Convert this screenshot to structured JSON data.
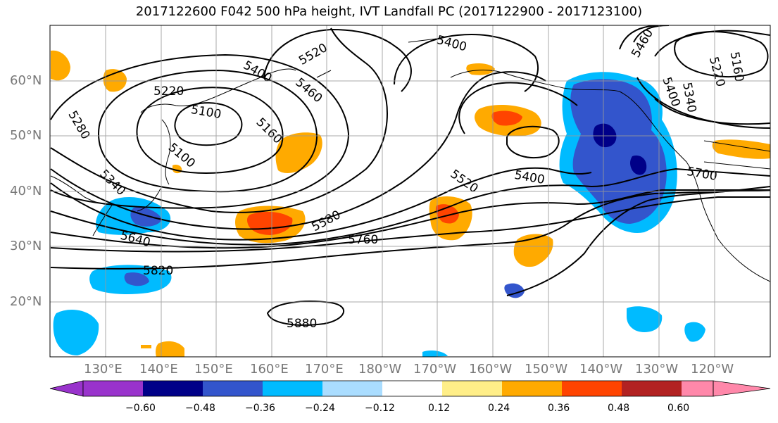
{
  "title": "2017122600 F042 500 hPa height, IVT Landfall PC (2017122900 - 2017123100)",
  "lat_labels": [
    "60°N",
    "50°N",
    "40°N",
    "30°N",
    "20°N"
  ],
  "lon_labels": [
    "130°E",
    "140°E",
    "150°E",
    "160°E",
    "170°E",
    "180°W",
    "170°W",
    "160°W",
    "150°W",
    "140°W",
    "130°W",
    "120°W"
  ],
  "contour_labels": [
    "5520",
    "5400",
    "5400",
    "5460",
    "5220",
    "5100",
    "5160",
    "5280",
    "5340",
    "5640",
    "5580",
    "5520",
    "5400",
    "5760",
    "5820",
    "5880",
    "5700",
    "5460",
    "5400",
    "5340",
    "5220",
    "5160"
  ],
  "colorbar": {
    "ticks": [
      "−0.60",
      "−0.48",
      "−0.36",
      "−0.24",
      "−0.12",
      "0.12",
      "0.24",
      "0.36",
      "0.48",
      "0.60"
    ],
    "colors": [
      "#9933cc",
      "#000088",
      "#3355cc",
      "#00bbff",
      "#aaddff",
      "#ffffff",
      "#ffee88",
      "#ffaa00",
      "#ff4400",
      "#b22222",
      "#ff88aa"
    ]
  }
}
